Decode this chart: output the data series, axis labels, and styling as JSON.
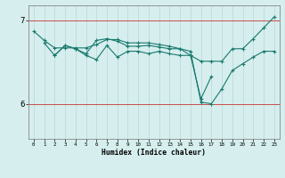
{
  "title": "",
  "xlabel": "Humidex (Indice chaleur)",
  "xlim": [
    -0.5,
    23.5
  ],
  "ylim": [
    5.58,
    7.18
  ],
  "yticks": [
    6,
    7
  ],
  "xticks": [
    0,
    1,
    2,
    3,
    4,
    5,
    6,
    7,
    8,
    9,
    10,
    11,
    12,
    13,
    14,
    15,
    16,
    17,
    18,
    19,
    20,
    21,
    22,
    23
  ],
  "bg_color": "#d6eeee",
  "grid_color": "#b8d8d8",
  "red_line_color": "#cc3333",
  "line_color": "#1a7a6e",
  "series": [
    {
      "x": [
        0,
        1,
        2,
        3,
        4,
        5,
        6,
        7,
        8,
        9,
        10,
        11,
        12,
        13,
        14,
        15,
        16,
        17,
        18,
        19,
        20,
        21,
        22,
        23
      ],
      "y": [
        6.87,
        6.76,
        6.67,
        6.67,
        6.67,
        6.67,
        6.71,
        6.77,
        6.77,
        6.73,
        6.73,
        6.73,
        6.71,
        6.69,
        6.66,
        6.58,
        6.51,
        6.51,
        6.51,
        6.66,
        6.66,
        6.78,
        6.91,
        7.04
      ]
    },
    {
      "x": [
        1,
        2,
        3,
        4,
        5,
        6,
        7,
        8,
        9,
        10,
        11,
        12,
        13,
        14,
        15,
        16,
        17,
        18,
        19,
        20,
        21,
        22,
        23
      ],
      "y": [
        6.73,
        6.58,
        6.7,
        6.66,
        6.6,
        6.76,
        6.78,
        6.75,
        6.69,
        6.69,
        6.7,
        6.68,
        6.66,
        6.66,
        6.63,
        6.02,
        6.0,
        6.18,
        6.4,
        6.48,
        6.56,
        6.63,
        6.63
      ]
    },
    {
      "x": [
        2,
        3,
        4,
        5,
        6,
        7,
        8,
        9,
        10,
        11,
        12,
        13,
        14,
        15,
        16,
        17
      ],
      "y": [
        6.58,
        6.7,
        6.66,
        6.58,
        6.53,
        6.7,
        6.56,
        6.63,
        6.63,
        6.6,
        6.63,
        6.6,
        6.58,
        6.58,
        6.06,
        6.33
      ]
    }
  ]
}
